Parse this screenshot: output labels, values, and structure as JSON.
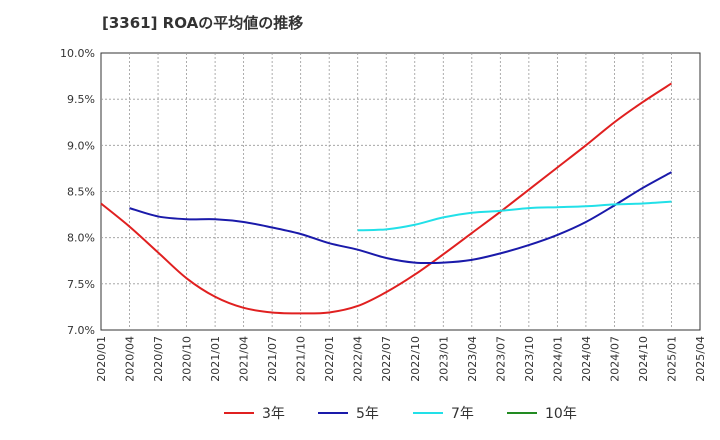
{
  "chart_data": {
    "type": "line",
    "title": "[3361]  ROAの平均値の推移",
    "xlabel": "",
    "ylabel": "",
    "ylim": [
      7.0,
      10.0
    ],
    "y_ticks": [
      "7.0%",
      "7.5%",
      "8.0%",
      "8.5%",
      "9.0%",
      "9.5%",
      "10.0%"
    ],
    "x_ticks": [
      "2020/01",
      "2020/04",
      "2020/07",
      "2020/10",
      "2021/01",
      "2021/04",
      "2021/07",
      "2021/10",
      "2022/01",
      "2022/04",
      "2022/07",
      "2022/10",
      "2023/01",
      "2023/04",
      "2023/07",
      "2023/10",
      "2024/01",
      "2024/04",
      "2024/07",
      "2024/10",
      "2025/01",
      "2025/04"
    ],
    "grid": true,
    "legend_position": "bottom",
    "series": [
      {
        "name": "3年",
        "color": "#e02020",
        "points": [
          [
            "2020/01",
            8.37
          ],
          [
            "2020/04",
            8.12
          ],
          [
            "2020/07",
            7.84
          ],
          [
            "2020/10",
            7.56
          ],
          [
            "2021/01",
            7.36
          ],
          [
            "2021/04",
            7.24
          ],
          [
            "2021/07",
            7.19
          ],
          [
            "2021/10",
            7.18
          ],
          [
            "2022/01",
            7.19
          ],
          [
            "2022/04",
            7.26
          ],
          [
            "2022/07",
            7.41
          ],
          [
            "2022/10",
            7.6
          ],
          [
            "2023/01",
            7.82
          ],
          [
            "2023/04",
            8.05
          ],
          [
            "2023/07",
            8.28
          ],
          [
            "2023/10",
            8.52
          ],
          [
            "2024/01",
            8.76
          ],
          [
            "2024/04",
            9.0
          ],
          [
            "2024/07",
            9.25
          ],
          [
            "2024/10",
            9.47
          ],
          [
            "2025/01",
            9.67
          ]
        ]
      },
      {
        "name": "5年",
        "color": "#1a1aaa",
        "points": [
          [
            "2020/04",
            8.32
          ],
          [
            "2020/07",
            8.23
          ],
          [
            "2020/10",
            8.2
          ],
          [
            "2021/01",
            8.2
          ],
          [
            "2021/04",
            8.17
          ],
          [
            "2021/07",
            8.11
          ],
          [
            "2021/10",
            8.04
          ],
          [
            "2022/01",
            7.94
          ],
          [
            "2022/04",
            7.87
          ],
          [
            "2022/07",
            7.78
          ],
          [
            "2022/10",
            7.73
          ],
          [
            "2023/01",
            7.73
          ],
          [
            "2023/04",
            7.76
          ],
          [
            "2023/07",
            7.83
          ],
          [
            "2023/10",
            7.92
          ],
          [
            "2024/01",
            8.03
          ],
          [
            "2024/04",
            8.17
          ],
          [
            "2024/07",
            8.35
          ],
          [
            "2024/10",
            8.54
          ],
          [
            "2025/01",
            8.71
          ]
        ]
      },
      {
        "name": "7年",
        "color": "#22e0e8",
        "points": [
          [
            "2022/04",
            8.08
          ],
          [
            "2022/07",
            8.09
          ],
          [
            "2022/10",
            8.14
          ],
          [
            "2023/01",
            8.22
          ],
          [
            "2023/04",
            8.27
          ],
          [
            "2023/07",
            8.29
          ],
          [
            "2023/10",
            8.32
          ],
          [
            "2024/01",
            8.33
          ],
          [
            "2024/04",
            8.34
          ],
          [
            "2024/07",
            8.36
          ],
          [
            "2024/10",
            8.37
          ],
          [
            "2025/01",
            8.39
          ]
        ]
      },
      {
        "name": "10年",
        "color": "#228b22",
        "points": []
      }
    ]
  }
}
